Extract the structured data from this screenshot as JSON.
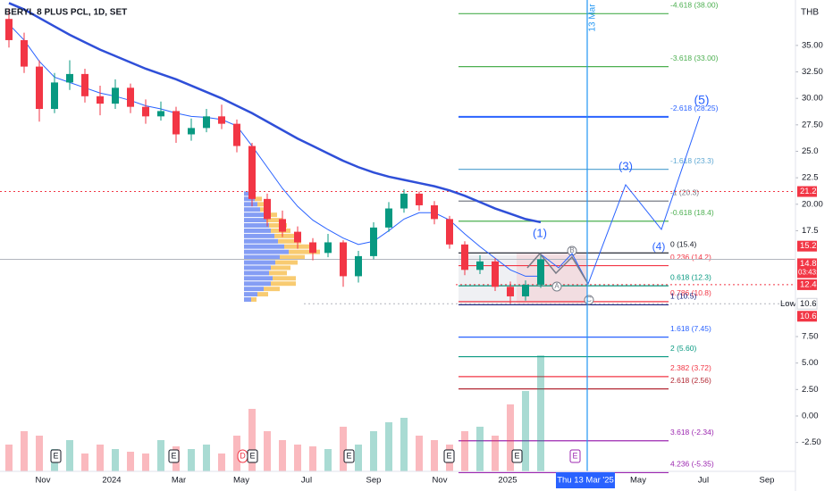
{
  "chart_data": {
    "type": "candlestick",
    "title": "BERYL 8 PLUS PCL, 1D, SET",
    "currency": "THB",
    "ylim": [
      -5.23,
      39.29
    ],
    "yticks": [
      {
        "value": 35,
        "label": "35.00"
      },
      {
        "value": 32.5,
        "label": "32.50"
      },
      {
        "value": 30,
        "label": "30.00"
      },
      {
        "value": 27.5,
        "label": "27.50"
      },
      {
        "value": 25,
        "label": "25.0"
      },
      {
        "value": 22.5,
        "label": "22.5"
      },
      {
        "value": 20,
        "label": "20.00"
      },
      {
        "value": 17.5,
        "label": "17.5"
      },
      {
        "value": 7.5,
        "label": "7.50"
      },
      {
        "value": 5,
        "label": "5.00"
      },
      {
        "value": 2.5,
        "label": "2.50"
      },
      {
        "value": 0,
        "label": "0.00"
      },
      {
        "value": -2.5,
        "label": "-2.50"
      }
    ],
    "x_labels": [
      "Nov",
      "2024",
      "Mar",
      "May",
      "Jul",
      "Sep",
      "Nov",
      "2025",
      "Thu 13 Mar '25",
      "May",
      "Jul",
      "Sep"
    ],
    "up_color": "#089981",
    "down_color": "#f23645",
    "open": [
      37.5,
      35.5,
      33,
      29,
      31.5,
      32.3,
      30.2,
      29.5,
      31,
      29.2,
      28.3,
      28.8,
      26.6,
      27.2,
      28.3,
      27.6,
      25.5,
      20.5,
      18.6,
      17.4,
      16.4,
      15.4,
      16.4,
      13.2,
      15.1,
      17.8,
      19.6,
      21.0,
      19.9,
      18.6,
      16.2,
      13.8,
      14.6,
      12.2,
      11.3,
      12.4
    ],
    "high": [
      38.5,
      36.2,
      33.6,
      32.4,
      33.6,
      32.8,
      31.2,
      31.8,
      31.4,
      29.9,
      29.7,
      29.2,
      28.1,
      29.0,
      29.4,
      28.0,
      25.8,
      21.0,
      19.4,
      17.9,
      16.8,
      17.2,
      16.6,
      15.6,
      18.3,
      20.2,
      21.4,
      21.2,
      20.3,
      18.9,
      16.5,
      15.2,
      14.9,
      12.7,
      12.8,
      15.2
    ],
    "low": [
      34.8,
      32.4,
      27.8,
      28.6,
      30.8,
      29.6,
      28.4,
      29.0,
      28.6,
      27.6,
      27.9,
      25.8,
      26.0,
      26.8,
      27.1,
      24.9,
      19.8,
      17.9,
      16.9,
      15.8,
      14.7,
      15.0,
      12.2,
      12.6,
      14.8,
      17.4,
      19.2,
      19.4,
      18.1,
      15.8,
      13.3,
      13.4,
      11.8,
      10.6,
      10.9,
      12.1
    ],
    "close": [
      35.5,
      33,
      29,
      31.5,
      32.3,
      30.2,
      29.5,
      31,
      29.2,
      28.3,
      28.8,
      26.6,
      27.2,
      28.3,
      27.6,
      25.5,
      20.5,
      18.6,
      17.4,
      16.4,
      15.4,
      16.4,
      13.2,
      15.1,
      17.8,
      19.6,
      21.0,
      19.9,
      18.6,
      16.2,
      13.8,
      14.6,
      12.2,
      11.3,
      12.4,
      14.8
    ],
    "volume": [
      30,
      45,
      40,
      25,
      35,
      20,
      30,
      25,
      22,
      20,
      35,
      28,
      25,
      30,
      20,
      40,
      70,
      45,
      35,
      30,
      28,
      25,
      50,
      30,
      45,
      55,
      60,
      40,
      35,
      30,
      45,
      50,
      40,
      75,
      90,
      130
    ],
    "moving_averages": [
      {
        "color": "#2962ff",
        "width": 1,
        "values": [
          37,
          35.5,
          33.5,
          32,
          31.5,
          31,
          30.5,
          30.2,
          29.8,
          29.3,
          29,
          28.6,
          28.3,
          28.2,
          28,
          27.4,
          25.5,
          23.5,
          21.5,
          19.8,
          18.5,
          17.6,
          16.8,
          16.2,
          16.5,
          17.5,
          18.6,
          19.2,
          19.2,
          18.5,
          17.2,
          16.0,
          14.9,
          13.8,
          13.2,
          13.2
        ]
      },
      {
        "color": "#2f4fd8",
        "width": 2.5,
        "values": [
          39.0,
          38.4,
          37.6,
          36.8,
          36.0,
          35.3,
          34.6,
          34.0,
          33.4,
          32.8,
          32.3,
          31.8,
          31.2,
          30.6,
          30.0,
          29.3,
          28.6,
          27.8,
          27.0,
          26.2,
          25.5,
          24.8,
          24.1,
          23.5,
          23.0,
          22.6,
          22.3,
          22.0,
          21.7,
          21.3,
          20.8,
          20.2,
          19.6,
          19.1,
          18.6,
          18.3
        ]
      }
    ],
    "volume_profile": {
      "prices": [
        21,
        20.5,
        20,
        19.5,
        19,
        18.5,
        18,
        17.5,
        17,
        16.5,
        16,
        15.5,
        15,
        14.5,
        14,
        13.5,
        13,
        12.5,
        12,
        11.5,
        11
      ],
      "up": [
        8,
        12,
        15,
        18,
        22,
        25,
        28,
        30,
        34,
        38,
        45,
        50,
        40,
        35,
        30,
        28,
        32,
        30,
        22,
        15,
        8
      ],
      "down": [
        4,
        8,
        10,
        12,
        15,
        18,
        20,
        22,
        24,
        26,
        30,
        35,
        28,
        25,
        22,
        20,
        26,
        28,
        18,
        12,
        6
      ]
    },
    "fib_levels": [
      {
        "label": "-4.618 (38.00)",
        "price": 38,
        "color": "#4caf50"
      },
      {
        "label": "-3.618 (33.00)",
        "price": 33,
        "color": "#4caf50"
      },
      {
        "label": "-2.618 (28.25)",
        "price": 28.25,
        "color": "#2962ff"
      },
      {
        "label": "-1.618 (23.3)",
        "price": 23.3,
        "color": "#5fa8d3"
      },
      {
        "label": "-1 (20.3)",
        "price": 20.3,
        "color": "#787b86"
      },
      {
        "label": "-0.618 (18.4)",
        "price": 18.4,
        "color": "#4caf50"
      },
      {
        "label": "0 (15.4)",
        "price": 15.4,
        "color": "#131722"
      },
      {
        "label": "0.236 (14.2)",
        "price": 14.2,
        "color": "#f23645"
      },
      {
        "label": "0.618 (12.3)",
        "price": 12.3,
        "color": "#089981"
      },
      {
        "label": "0.786 (10.8)",
        "price": 10.8,
        "color": "#f23645"
      },
      {
        "label": "1 (10.5)",
        "price": 10.5,
        "color": "#1a237e"
      },
      {
        "label": "1.618 (7.45)",
        "price": 7.45,
        "color": "#2962ff"
      },
      {
        "label": "2 (5.60)",
        "price": 5.6,
        "color": "#089981"
      },
      {
        "label": "2.382 (3.72)",
        "price": 3.72,
        "color": "#f23645"
      },
      {
        "label": "2.618 (2.56)",
        "price": 2.56,
        "color": "#b22833"
      },
      {
        "label": "3.618 (-2.34)",
        "price": -2.34,
        "color": "#9c27b0"
      },
      {
        "label": "4.236 (-5.35)",
        "price": -5.35,
        "color": "#9c27b0"
      }
    ],
    "price_tags": [
      {
        "value": 21.2,
        "label": "21.2",
        "color": "#f23645"
      },
      {
        "value": 15.2,
        "label": "15.2",
        "color": "#f23645"
      },
      {
        "value": 14.8,
        "label": "14.8",
        "color": "#f23645",
        "sub": "03:43:07"
      },
      {
        "value": 12.4,
        "label": "12.4",
        "color": "#f23645"
      },
      {
        "value": 10.6,
        "label": "10.6",
        "color": "#ffffff",
        "title": "Low"
      },
      {
        "value": 10.6,
        "label": "10.6",
        "color": "#f23645"
      }
    ],
    "wave_labels": [
      "(1)",
      "(3)",
      "(4)",
      "(5)",
      "A",
      "B",
      "C"
    ],
    "date_marker": "13 Mar",
    "events": [
      "E",
      "E",
      "D",
      "E",
      "E",
      "E",
      "E",
      "E"
    ]
  }
}
